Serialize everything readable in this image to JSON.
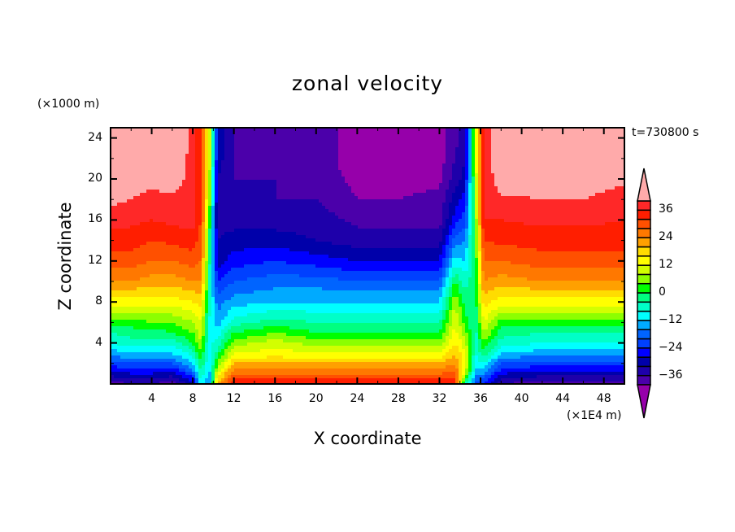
{
  "chart_data": {
    "type": "heatmap",
    "subtype": "filled-contour",
    "title": "zonal velocity",
    "xlabel": "X coordinate",
    "ylabel": "Z coordinate",
    "x_units": "(×1E4 m)",
    "z_units": "(×1000 m)",
    "time_label": "t=730800 s",
    "xlim": [
      0,
      50
    ],
    "zlim": [
      0,
      25
    ],
    "x_ticks": [
      "4",
      "8",
      "12",
      "16",
      "20",
      "24",
      "28",
      "32",
      "36",
      "40",
      "44",
      "48"
    ],
    "x_tick_values": [
      4,
      8,
      12,
      16,
      20,
      24,
      28,
      32,
      36,
      40,
      44,
      48
    ],
    "z_ticks": [
      "4",
      "8",
      "12",
      "16",
      "20",
      "24"
    ],
    "z_tick_values": [
      4,
      8,
      12,
      16,
      20,
      24
    ],
    "levels": {
      "min": -40,
      "max": 40,
      "step": 4
    },
    "colorbar_labels": [
      "36",
      "24",
      "12",
      "0",
      "−12",
      "−24",
      "−36"
    ],
    "colorbar_label_values": [
      36,
      24,
      12,
      0,
      -12,
      -24,
      -36
    ],
    "colors_low_to_high": [
      "#4b00aa",
      "#1e00aa",
      "#0000aa",
      "#0000ff",
      "#0040ff",
      "#0064ff",
      "#00aaff",
      "#00ffff",
      "#00ffc8",
      "#00ff80",
      "#00ff00",
      "#8cff00",
      "#d2ff00",
      "#ffff00",
      "#ffdc00",
      "#ffa000",
      "#ff7800",
      "#ff5000",
      "#ff1e00",
      "#ff2828"
    ],
    "under_color": "#9600aa",
    "over_color": "#ffaaaa",
    "grid_x": [
      0,
      2,
      4,
      6,
      8,
      8.8,
      9.6,
      10.4,
      12,
      16,
      20,
      24,
      28,
      32,
      33.5,
      34.5,
      35.5,
      36.3,
      38,
      42,
      46,
      50
    ],
    "grid_z": [
      0,
      1,
      2,
      3,
      4,
      5,
      6,
      8,
      10,
      12,
      14,
      16,
      18,
      20,
      22,
      25
    ],
    "u_by_column": [
      [
        -38,
        -30,
        -22,
        -14,
        -8,
        -4,
        2,
        14,
        24,
        30,
        34,
        38,
        41,
        44,
        45,
        46
      ],
      [
        -36,
        -28,
        -20,
        -12,
        -6,
        -2,
        2,
        14,
        24,
        30,
        34,
        37,
        40,
        44,
        45,
        46
      ],
      [
        -36,
        -28,
        -20,
        -12,
        -6,
        -2,
        4,
        14,
        22,
        28,
        32,
        36,
        38,
        42,
        45,
        46
      ],
      [
        -38,
        -30,
        -20,
        -12,
        -6,
        0,
        4,
        14,
        22,
        28,
        33,
        37,
        39,
        43,
        45,
        46
      ],
      [
        -30,
        -20,
        -12,
        -6,
        0,
        4,
        8,
        16,
        24,
        30,
        34,
        38,
        38,
        38,
        38,
        38
      ],
      [
        -10,
        -4,
        0,
        4,
        8,
        10,
        12,
        18,
        24,
        28,
        30,
        32,
        32,
        32,
        32,
        32
      ],
      [
        -16,
        -14,
        -12,
        -10,
        -10,
        -10,
        -8,
        -6,
        -4,
        -2,
        0,
        4,
        8,
        10,
        12,
        14
      ],
      [
        20,
        12,
        4,
        -2,
        -6,
        -10,
        -14,
        -18,
        -24,
        -30,
        -32,
        -34,
        -34,
        -32,
        -30,
        -28
      ],
      [
        36,
        28,
        20,
        12,
        6,
        0,
        -6,
        -14,
        -20,
        -26,
        -30,
        -34,
        -36,
        -36,
        -36,
        -36
      ],
      [
        36,
        28,
        20,
        14,
        10,
        4,
        -2,
        -12,
        -18,
        -24,
        -30,
        -34,
        -36,
        -36,
        -38,
        -38
      ],
      [
        36,
        28,
        20,
        12,
        6,
        0,
        -4,
        -12,
        -18,
        -26,
        -32,
        -34,
        -36,
        -38,
        -38,
        -38
      ],
      [
        36,
        28,
        20,
        12,
        6,
        0,
        -4,
        -12,
        -20,
        -28,
        -34,
        -37,
        -40,
        -41,
        -42,
        -42
      ],
      [
        36,
        28,
        20,
        12,
        6,
        0,
        -4,
        -12,
        -20,
        -28,
        -34,
        -38,
        -40,
        -41,
        -42,
        -42
      ],
      [
        36,
        28,
        20,
        12,
        6,
        0,
        -4,
        -12,
        -20,
        -28,
        -34,
        -38,
        -39,
        -41,
        -42,
        -42
      ],
      [
        36,
        30,
        24,
        20,
        16,
        14,
        12,
        8,
        0,
        -10,
        -18,
        -26,
        -30,
        -34,
        -36,
        -38
      ],
      [
        -4,
        10,
        14,
        12,
        10,
        6,
        2,
        -2,
        -6,
        -12,
        -16,
        -22,
        -26,
        -30,
        -32,
        -34
      ],
      [
        -20,
        -14,
        -10,
        -8,
        -6,
        -6,
        -4,
        -2,
        0,
        0,
        2,
        4,
        6,
        8,
        10,
        10
      ],
      [
        -24,
        -16,
        -8,
        -2,
        4,
        8,
        12,
        18,
        24,
        28,
        32,
        36,
        36,
        36,
        36,
        36
      ],
      [
        -36,
        -28,
        -20,
        -12,
        -6,
        -2,
        2,
        14,
        22,
        28,
        33,
        36,
        39,
        43,
        45,
        46
      ],
      [
        -38,
        -30,
        -22,
        -14,
        -8,
        -4,
        2,
        14,
        24,
        30,
        34,
        37,
        40,
        43,
        45,
        46
      ],
      [
        -38,
        -30,
        -22,
        -14,
        -8,
        -4,
        2,
        14,
        24,
        30,
        34,
        37,
        40,
        42,
        44,
        46
      ],
      [
        -38,
        -30,
        -22,
        -14,
        -8,
        -4,
        2,
        14,
        24,
        30,
        34,
        36,
        38,
        41,
        43,
        46
      ]
    ]
  }
}
